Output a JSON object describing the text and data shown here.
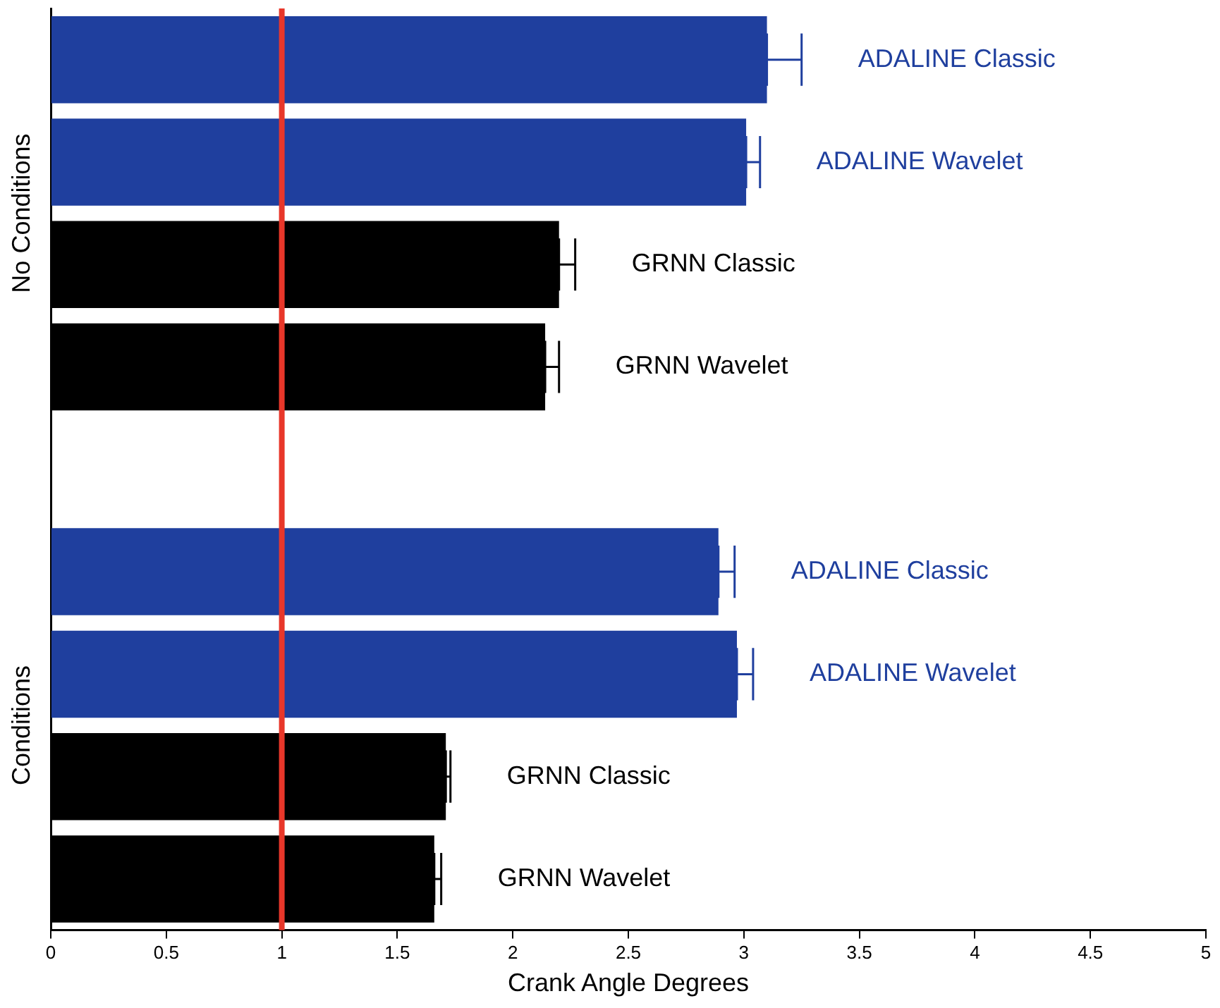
{
  "chart_data": {
    "type": "bar",
    "orientation": "horizontal",
    "xlabel": "Crank Angle Degrees",
    "categories": [
      "ADALINE Classic",
      "ADALINE Wavelet",
      "GRNN Classic",
      "GRNN Wavelet",
      null,
      "ADALINE Classic",
      "ADALINE Wavelet",
      "GRNN Classic",
      "GRNN Wavelet"
    ],
    "values": [
      3.1,
      3.01,
      2.2,
      2.14,
      null,
      2.89,
      2.97,
      1.71,
      1.66
    ],
    "errors": [
      [
        3.1,
        3.25
      ],
      [
        3.01,
        3.07
      ],
      [
        2.2,
        2.27
      ],
      [
        2.14,
        2.2
      ],
      null,
      [
        2.89,
        2.96
      ],
      [
        2.97,
        3.04
      ],
      [
        1.71,
        1.73
      ],
      [
        1.66,
        1.69
      ]
    ],
    "colors": [
      "#1f3f9e",
      "#1f3f9e",
      "#000000",
      "#000000",
      "#000000",
      "#1f3f9e",
      "#1f3f9e",
      "#000000",
      "#000000"
    ],
    "xlim": [
      0,
      5
    ],
    "xticks": [
      0,
      0.5,
      1,
      1.5,
      2,
      2.5,
      3,
      3.5,
      4,
      4.5,
      5
    ],
    "ref_lines": [
      {
        "axis": "x",
        "value": 1,
        "color": "#e8372a"
      }
    ],
    "annotations": [
      "No Conditions",
      "Conditions"
    ],
    "tick_labels": "x",
    "grid": false,
    "legend": false
  }
}
